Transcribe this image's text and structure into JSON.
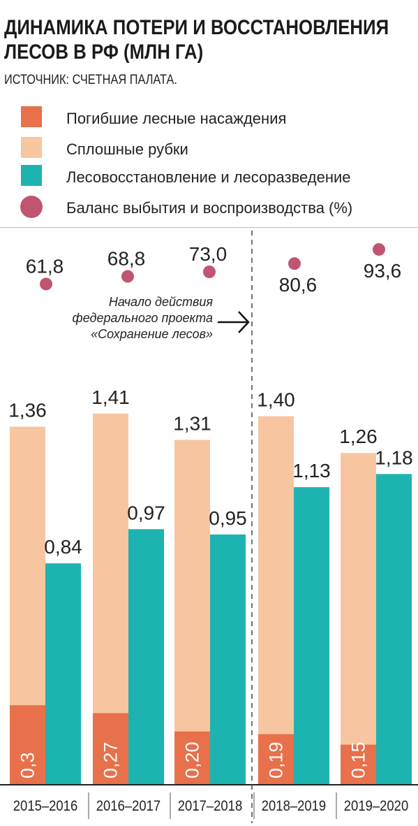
{
  "title_line1": "ДИНАМИКА ПОТЕРИ И ВОССТАНОВЛЕНИЯ",
  "title_line2": "ЛЕСОВ В РФ (МЛН ГА)",
  "source": "ИСТОЧНИК: СЧЕТНАЯ ПАЛАТА.",
  "colors": {
    "dead": "#e8704a",
    "clearcut": "#f7c6a0",
    "reforestation": "#1db3b0",
    "balance": "#c05571"
  },
  "legend": [
    {
      "key": "dead",
      "label": "Погибшие лесные насаждения",
      "shape": "square"
    },
    {
      "key": "clearcut",
      "label": "Сплошные рубки",
      "shape": "square"
    },
    {
      "key": "reforestation",
      "label": "Лесовосстановление и лесоразведение",
      "shape": "square"
    },
    {
      "key": "balance",
      "label": "Баланс выбытия и воспроизводства (%)",
      "shape": "circle"
    }
  ],
  "annotation": {
    "line1": "Начало действия",
    "line2": "федерального проекта",
    "line3": "«Сохранение лесов»"
  },
  "chart_data": {
    "type": "bar",
    "title": "ДИНАМИКА ПОТЕРИ И ВОССТАНОВЛЕНИЯ ЛЕСОВ В РФ (МЛН ГА)",
    "categories": [
      "2015–2016",
      "2016–2017",
      "2017–2018",
      "2018–2019",
      "2019–2020"
    ],
    "series": [
      {
        "name": "Погибшие лесные насаждения",
        "values": [
          0.3,
          0.27,
          0.2,
          0.19,
          0.15
        ],
        "labels": [
          "0,3",
          "0,27",
          "0,20",
          "0,19",
          "0,15"
        ],
        "stacked_within": "Сплошные рубки"
      },
      {
        "name": "Сплошные рубки",
        "values": [
          1.36,
          1.41,
          1.31,
          1.4,
          1.26
        ],
        "labels": [
          "1,36",
          "1,41",
          "1,31",
          "1,40",
          "1,26"
        ]
      },
      {
        "name": "Лесовосстановление и лесоразведение",
        "values": [
          0.84,
          0.97,
          0.95,
          1.13,
          1.18
        ],
        "labels": [
          "0,84",
          "0,97",
          "0,95",
          "1,13",
          "1,18"
        ]
      },
      {
        "name": "Баланс выбытия и воспроизводства (%)",
        "values": [
          61.8,
          68.8,
          73.0,
          80.6,
          93.6
        ],
        "labels": [
          "61,8",
          "68,8",
          "73,0",
          "80,6",
          "93,6"
        ]
      }
    ],
    "ylim": [
      0,
      1.5
    ],
    "balance_ylim": [
      55,
      100
    ],
    "separator_after_category": "2017–2018",
    "grid": false,
    "legend_position": "top"
  }
}
